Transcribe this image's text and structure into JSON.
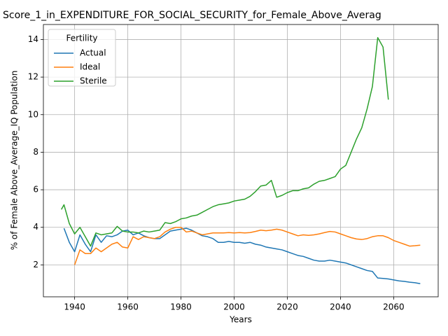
{
  "chart_data": {
    "type": "line",
    "title": "Score_1_in_EXPENDITURE_FOR_SOCIAL_SECURITY_for_Female_Above_Averag",
    "xlabel": "Years",
    "ylabel": "% of Female Above_Average_IQ Population",
    "legend_title": "Fertility",
    "legend": "upper left",
    "grid": true,
    "x": [
      1935,
      1936,
      1938,
      1940,
      1942,
      1944,
      1946,
      1948,
      1950,
      1952,
      1954,
      1956,
      1958,
      1960,
      1962,
      1964,
      1966,
      1968,
      1970,
      1972,
      1974,
      1976,
      1978,
      1980,
      1982,
      1984,
      1986,
      1988,
      1990,
      1992,
      1994,
      1996,
      1998,
      2000,
      2002,
      2004,
      2006,
      2008,
      2010,
      2012,
      2014,
      2016,
      2018,
      2020,
      2022,
      2024,
      2026,
      2028,
      2030,
      2032,
      2034,
      2036,
      2038,
      2040,
      2042,
      2044,
      2046,
      2048,
      2050,
      2052,
      2054,
      2056,
      2058,
      2060,
      2062,
      2064,
      2066,
      2068,
      2070
    ],
    "series": [
      {
        "name": "Actual",
        "color": "#1f77b4",
        "values": [
          null,
          3.95,
          3.2,
          2.7,
          3.6,
          3.1,
          2.7,
          3.6,
          3.2,
          3.55,
          3.5,
          3.6,
          3.8,
          3.85,
          3.6,
          3.7,
          3.55,
          3.45,
          3.4,
          3.4,
          3.6,
          3.8,
          3.85,
          3.9,
          3.95,
          3.85,
          3.7,
          3.55,
          3.5,
          3.4,
          3.2,
          3.2,
          3.25,
          3.2,
          3.2,
          3.15,
          3.2,
          3.1,
          3.05,
          2.95,
          2.9,
          2.85,
          2.8,
          2.7,
          2.6,
          2.5,
          2.45,
          2.35,
          2.25,
          2.2,
          2.2,
          2.25,
          2.2,
          2.15,
          2.1,
          2.0,
          1.9,
          1.8,
          1.7,
          1.65,
          1.3,
          1.28,
          1.25,
          1.2,
          1.15,
          1.12,
          1.08,
          1.05,
          1.0
        ]
      },
      {
        "name": "Ideal",
        "color": "#ff7f0e",
        "values": [
          null,
          null,
          null,
          2.0,
          2.8,
          2.6,
          2.6,
          2.9,
          2.7,
          2.9,
          3.1,
          3.2,
          2.95,
          2.9,
          3.5,
          3.35,
          3.5,
          3.45,
          3.4,
          3.5,
          3.75,
          3.9,
          4.0,
          4.0,
          3.75,
          3.8,
          3.7,
          3.6,
          3.65,
          3.7,
          3.7,
          3.7,
          3.72,
          3.7,
          3.72,
          3.7,
          3.72,
          3.78,
          3.85,
          3.82,
          3.85,
          3.9,
          3.85,
          3.75,
          3.65,
          3.55,
          3.6,
          3.57,
          3.6,
          3.65,
          3.72,
          3.78,
          3.75,
          3.65,
          3.55,
          3.45,
          3.38,
          3.35,
          3.4,
          3.5,
          3.55,
          3.55,
          3.45,
          3.3,
          3.2,
          3.1,
          3.0,
          3.02,
          3.05
        ]
      },
      {
        "name": "Sterile",
        "color": "#2ca02c",
        "values": [
          4.95,
          5.2,
          4.2,
          3.65,
          4.0,
          3.5,
          3.0,
          3.7,
          3.6,
          3.65,
          3.7,
          4.05,
          3.8,
          3.75,
          3.75,
          3.7,
          3.8,
          3.75,
          3.8,
          3.85,
          4.25,
          4.2,
          4.3,
          4.45,
          4.5,
          4.6,
          4.65,
          4.8,
          4.95,
          5.1,
          5.2,
          5.25,
          5.3,
          5.4,
          5.45,
          5.5,
          5.65,
          5.9,
          6.2,
          6.25,
          6.5,
          5.6,
          5.7,
          5.85,
          5.95,
          5.95,
          6.05,
          6.1,
          6.3,
          6.45,
          6.5,
          6.6,
          6.7,
          7.1,
          7.3,
          8.0,
          8.7,
          9.3,
          10.3,
          11.5,
          14.1,
          13.6,
          10.8,
          null,
          null,
          null,
          null,
          null,
          null
        ]
      }
    ],
    "xlim": [
      1928.25,
      2076.75
    ],
    "xticks": [
      1940,
      1960,
      1980,
      2000,
      2020,
      2040,
      2060
    ],
    "ylim": [
      0.3,
      14.8
    ],
    "yticks": [
      2,
      4,
      6,
      8,
      10,
      12,
      14
    ]
  }
}
